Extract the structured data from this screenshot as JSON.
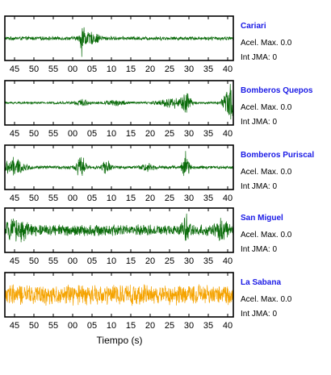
{
  "chart_data": {
    "type": "line",
    "xlabel": "Tiempo (s)",
    "x_tick_labels": [
      "45",
      "50",
      "55",
      "00",
      "05",
      "10",
      "15",
      "20",
      "25",
      "30",
      "35",
      "40"
    ],
    "panels": [
      {
        "station": "Cariari",
        "acel_label": "Acel. Max. 0.0",
        "int_label": "Int JMA: 0",
        "color": "#0a6b0a",
        "ylim": [
          -1,
          1
        ],
        "noise": 0.1,
        "bursts": [
          {
            "x": 3.5,
            "amp": 0.95,
            "width": 0.6
          },
          {
            "x": 5.5,
            "amp": 0.25,
            "width": 2.5
          }
        ]
      },
      {
        "station": "Bomberos Quepos",
        "acel_label": "Acel. Max. 0.0",
        "int_label": "Int JMA: 0",
        "color": "#0a6b0a",
        "ylim": [
          -1,
          1
        ],
        "noise": 0.06,
        "bursts": [
          {
            "x": 3,
            "amp": 0.15,
            "width": 2
          },
          {
            "x": 12,
            "amp": 0.12,
            "width": 3
          },
          {
            "x": 26,
            "amp": 0.25,
            "width": 3.5
          },
          {
            "x": 29.5,
            "amp": 0.45,
            "width": 1.2
          },
          {
            "x": 41,
            "amp": 1.0,
            "width": 1.8
          }
        ]
      },
      {
        "station": "Bomberos Puriscal",
        "acel_label": "Acel. Max. 0.0",
        "int_label": "Int JMA: 0",
        "color": "#0a6b0a",
        "ylim": [
          -1,
          1
        ],
        "noise": 0.09,
        "bursts": [
          {
            "x": -14,
            "amp": 0.45,
            "width": 2.5
          },
          {
            "x": 3,
            "amp": 0.55,
            "width": 1.2
          },
          {
            "x": 9.5,
            "amp": 0.35,
            "width": 1.0
          },
          {
            "x": 20,
            "amp": 0.2,
            "width": 1.5
          },
          {
            "x": 29.5,
            "amp": 0.95,
            "width": 0.8
          }
        ]
      },
      {
        "station": "San Miguel",
        "acel_label": "Acel. Max. 0.0",
        "int_label": "Int JMA: 0",
        "color": "#0a6b0a",
        "ylim": [
          -1,
          1
        ],
        "noise": 0.3,
        "bursts": [
          {
            "x": -13,
            "amp": 0.35,
            "width": 3
          },
          {
            "x": 29.5,
            "amp": 0.65,
            "width": 0.8
          },
          {
            "x": 38.5,
            "amp": 0.35,
            "width": 1.5
          }
        ]
      },
      {
        "station": "La Sabana",
        "acel_label": "Acel. Max. 0.0",
        "int_label": "Int JMA: 0",
        "color": "#f5a300",
        "ylim": [
          -1,
          1
        ],
        "noise": 0.55,
        "bursts": []
      }
    ]
  }
}
